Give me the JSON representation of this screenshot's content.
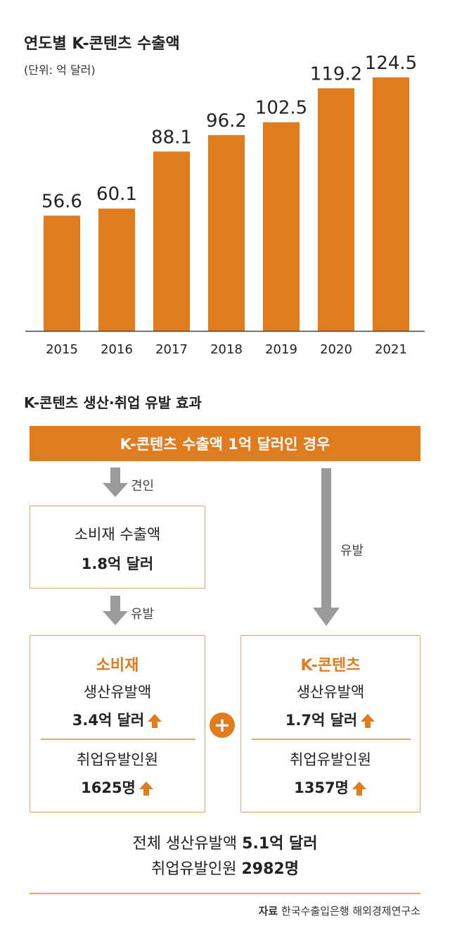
{
  "chart_data": {
    "type": "bar",
    "title": "연도별 K-콘텐츠 수출액",
    "subtitle": "(단위: 억 달러)",
    "categories": [
      "2015",
      "2016",
      "2017",
      "2018",
      "2019",
      "2020",
      "2021"
    ],
    "values": [
      56.6,
      60.1,
      88.1,
      96.2,
      102.5,
      119.2,
      124.5
    ],
    "value_labels": [
      "56.6",
      "60.1",
      "88.1",
      "96.2",
      "102.5",
      "119.2",
      "124.5"
    ],
    "ylim": [
      0,
      130
    ],
    "xlabel": "",
    "ylabel": "",
    "grid": false
  },
  "colors": {
    "accent": "#e07b1e",
    "arrow_gray": "#9a9a9a",
    "box_border": "#e8a76a"
  },
  "diagram": {
    "title": "K-콘텐츠 생산·취업 유발 효과",
    "banner": "K-콘텐츠 수출액 1억 달러인 경우",
    "arrow1_label": "견인",
    "arrow2_label": "유발",
    "arrow_long_label": "유발",
    "consumer_export": {
      "label": "소비재 수출액",
      "value": "1.8억 달러"
    },
    "consumer_effect": {
      "title": "소비재",
      "production_label": "생산유발액",
      "production_value": "3.4억 달러",
      "employment_label": "취업유발인원",
      "employment_value": "1625명"
    },
    "content_effect": {
      "title": "K-콘텐츠",
      "production_label": "생산유발액",
      "production_value": "1.7억 달러",
      "employment_label": "취업유발인원",
      "employment_value": "1357명"
    },
    "plus_symbol": "+",
    "total": {
      "production_label": "전체 생산유발액",
      "production_value": "5.1억 달러",
      "employment_label": "취업유발인원",
      "employment_value": "2982명"
    }
  },
  "source": {
    "label": "자료",
    "text": "한국수출입은행 해외경제연구소"
  },
  "icons": {
    "up": "up-arrow-icon",
    "down": "down-arrow-icon"
  }
}
